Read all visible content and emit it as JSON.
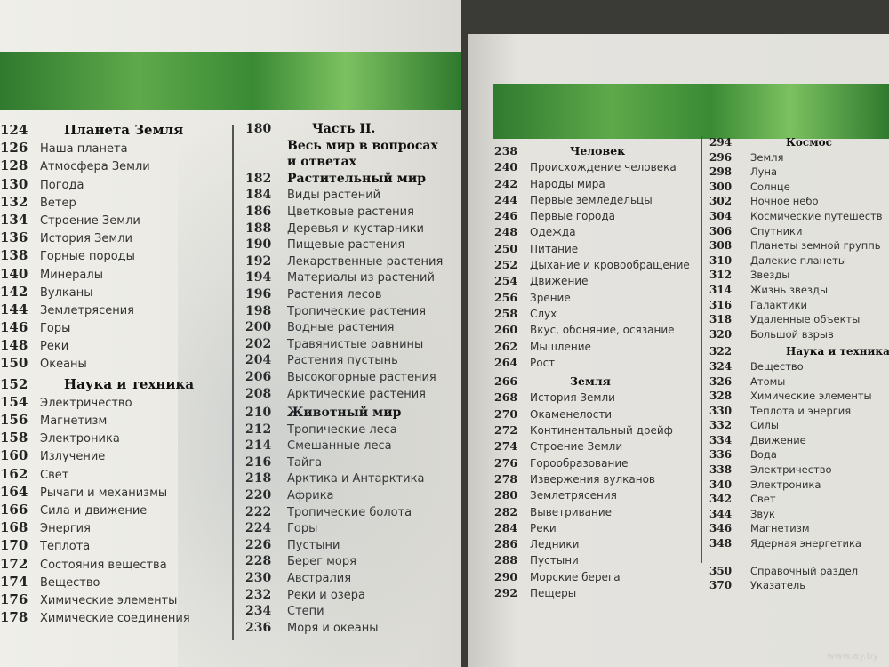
{
  "left_page": {
    "col1": [
      {
        "page": "124",
        "title": "Планета Земля",
        "heading": true
      },
      {
        "page": "126",
        "title": "Наша планета"
      },
      {
        "page": "128",
        "title": "Атмосфера Земли"
      },
      {
        "page": "130",
        "title": "Погода"
      },
      {
        "page": "132",
        "title": "Ветер"
      },
      {
        "page": "134",
        "title": "Строение Земли"
      },
      {
        "page": "136",
        "title": "История Земли"
      },
      {
        "page": "138",
        "title": "Горные породы"
      },
      {
        "page": "140",
        "title": "Минералы"
      },
      {
        "page": "142",
        "title": "Вулканы"
      },
      {
        "page": "144",
        "title": "Землетрясения"
      },
      {
        "page": "146",
        "title": "Горы"
      },
      {
        "page": "148",
        "title": "Реки"
      },
      {
        "page": "150",
        "title": "Океаны"
      },
      {
        "page": "152",
        "title": "Наука и техника",
        "heading": true
      },
      {
        "page": "154",
        "title": "Электричество"
      },
      {
        "page": "156",
        "title": "Магнетизм"
      },
      {
        "page": "158",
        "title": "Электроника"
      },
      {
        "page": "160",
        "title": "Излучение"
      },
      {
        "page": "162",
        "title": "Свет"
      },
      {
        "page": "164",
        "title": "Рычаги и механизмы"
      },
      {
        "page": "166",
        "title": "Сила и движение"
      },
      {
        "page": "168",
        "title": "Энергия"
      },
      {
        "page": "170",
        "title": "Теплота"
      },
      {
        "page": "172",
        "title": "Состояния вещества"
      },
      {
        "page": "174",
        "title": "Вещество"
      },
      {
        "page": "176",
        "title": "Химические элементы"
      },
      {
        "page": "178",
        "title": "Химические соединения"
      }
    ],
    "col2": [
      {
        "page": "180",
        "title": "Часть II.",
        "heading": true
      },
      {
        "page": "",
        "title": "Весь мир в вопросах",
        "heading": true
      },
      {
        "page": "",
        "title": "и ответах",
        "heading": true
      },
      {
        "page": "182",
        "title": "Растительный мир",
        "heading": true
      },
      {
        "page": "184",
        "title": "Виды растений"
      },
      {
        "page": "186",
        "title": "Цветковые растения"
      },
      {
        "page": "188",
        "title": "Деревья и кустарники"
      },
      {
        "page": "190",
        "title": "Пищевые растения"
      },
      {
        "page": "192",
        "title": "Лекарственные растения"
      },
      {
        "page": "194",
        "title": "Материалы из растений"
      },
      {
        "page": "196",
        "title": "Растения лесов"
      },
      {
        "page": "198",
        "title": "Тропические растения"
      },
      {
        "page": "200",
        "title": "Водные растения"
      },
      {
        "page": "202",
        "title": "Травянистые равнины"
      },
      {
        "page": "204",
        "title": "Растения пустынь"
      },
      {
        "page": "206",
        "title": "Высокогорные растения"
      },
      {
        "page": "208",
        "title": "Арктические растения"
      },
      {
        "page": "210",
        "title": "Животный мир",
        "heading": true
      },
      {
        "page": "212",
        "title": "Тропические леса"
      },
      {
        "page": "214",
        "title": "Смешанные леса"
      },
      {
        "page": "216",
        "title": "Тайга"
      },
      {
        "page": "218",
        "title": "Арктика и Антарктика"
      },
      {
        "page": "220",
        "title": "Африка"
      },
      {
        "page": "222",
        "title": "Тропические болота"
      },
      {
        "page": "224",
        "title": "Горы"
      },
      {
        "page": "226",
        "title": "Пустыни"
      },
      {
        "page": "228",
        "title": "Берег моря"
      },
      {
        "page": "230",
        "title": "Австралия"
      },
      {
        "page": "232",
        "title": "Реки и озера"
      },
      {
        "page": "234",
        "title": "Степи"
      },
      {
        "page": "236",
        "title": "Моря и океаны"
      }
    ]
  },
  "right_page": {
    "col1": [
      {
        "page": "238",
        "title": "Человек",
        "heading": true
      },
      {
        "page": "240",
        "title": "Происхождение человека"
      },
      {
        "page": "242",
        "title": "Народы мира"
      },
      {
        "page": "244",
        "title": "Первые земледельцы"
      },
      {
        "page": "246",
        "title": "Первые города"
      },
      {
        "page": "248",
        "title": "Одежда"
      },
      {
        "page": "250",
        "title": "Питание"
      },
      {
        "page": "252",
        "title": "Дыхание и кровообращение"
      },
      {
        "page": "254",
        "title": "Движение"
      },
      {
        "page": "256",
        "title": "Зрение"
      },
      {
        "page": "258",
        "title": "Слух"
      },
      {
        "page": "260",
        "title": "Вкус, обоняние, осязание"
      },
      {
        "page": "262",
        "title": "Мышление"
      },
      {
        "page": "264",
        "title": "Рост"
      },
      {
        "page": "266",
        "title": "Земля",
        "heading": true
      },
      {
        "page": "268",
        "title": "История Земли"
      },
      {
        "page": "270",
        "title": "Окаменелости"
      },
      {
        "page": "272",
        "title": "Континентальный дрейф"
      },
      {
        "page": "274",
        "title": "Строение Земли"
      },
      {
        "page": "276",
        "title": "Горообразование"
      },
      {
        "page": "278",
        "title": "Извержения вулканов"
      },
      {
        "page": "280",
        "title": "Землетрясения"
      },
      {
        "page": "282",
        "title": "Выветривание"
      },
      {
        "page": "284",
        "title": "Реки"
      },
      {
        "page": "286",
        "title": "Ледники"
      },
      {
        "page": "288",
        "title": "Пустыни"
      },
      {
        "page": "290",
        "title": "Морские берега"
      },
      {
        "page": "292",
        "title": "Пещеры"
      }
    ],
    "col2": [
      {
        "page": "294",
        "title": "Космос",
        "heading": true
      },
      {
        "page": "296",
        "title": "Земля"
      },
      {
        "page": "298",
        "title": "Луна"
      },
      {
        "page": "300",
        "title": "Солнце"
      },
      {
        "page": "302",
        "title": "Ночное небо"
      },
      {
        "page": "304",
        "title": "Космические путешеств"
      },
      {
        "page": "306",
        "title": "Спутники"
      },
      {
        "page": "308",
        "title": "Планеты земной группь"
      },
      {
        "page": "310",
        "title": "Далекие планеты"
      },
      {
        "page": "312",
        "title": "Звезды"
      },
      {
        "page": "314",
        "title": "Жизнь звезды"
      },
      {
        "page": "316",
        "title": "Галактики"
      },
      {
        "page": "318",
        "title": "Удаленные объекты"
      },
      {
        "page": "320",
        "title": "Большой взрыв"
      },
      {
        "page": "322",
        "title": "Наука и техника",
        "heading": true
      },
      {
        "page": "324",
        "title": "Вещество"
      },
      {
        "page": "326",
        "title": "Атомы"
      },
      {
        "page": "328",
        "title": "Химические элементы"
      },
      {
        "page": "330",
        "title": "Теплота и энергия"
      },
      {
        "page": "332",
        "title": "Силы"
      },
      {
        "page": "334",
        "title": "Движение"
      },
      {
        "page": "336",
        "title": "Вода"
      },
      {
        "page": "338",
        "title": "Электричество"
      },
      {
        "page": "340",
        "title": "Электроника"
      },
      {
        "page": "342",
        "title": "Свет"
      },
      {
        "page": "344",
        "title": "Звук"
      },
      {
        "page": "346",
        "title": "Магнетизм"
      },
      {
        "page": "348",
        "title": "Ядерная энергетика"
      },
      {
        "page": "350",
        "title": "Справочный раздел",
        "gap": true
      },
      {
        "page": "370",
        "title": "Указатель"
      }
    ]
  },
  "watermark": "www.ay.by",
  "colors": {
    "banner_green": "#3a8a35",
    "paper": "#ecebe6",
    "background": "#3a3b36"
  }
}
